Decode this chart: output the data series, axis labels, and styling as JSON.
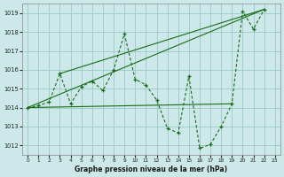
{
  "title": "Graphe pression niveau de la mer (hPa)",
  "background_color": "#cce8e8",
  "grid_color": "#9ac8c8",
  "line_color": "#1a6b1a",
  "xlim": [
    -0.5,
    23.5
  ],
  "ylim": [
    1011.5,
    1019.5
  ],
  "xticks": [
    0,
    1,
    2,
    3,
    4,
    5,
    6,
    7,
    8,
    9,
    10,
    11,
    12,
    13,
    14,
    15,
    16,
    17,
    18,
    19,
    20,
    21,
    22,
    23
  ],
  "yticks": [
    1012,
    1013,
    1014,
    1015,
    1016,
    1017,
    1018,
    1019
  ],
  "main_series": {
    "x": [
      0,
      1,
      2,
      3,
      4,
      5,
      6,
      7,
      8,
      9,
      10,
      11,
      12,
      13,
      14,
      15,
      16,
      17,
      18,
      19,
      20,
      21,
      22
    ],
    "y": [
      1014.0,
      1014.1,
      1014.3,
      1015.8,
      1014.2,
      1015.1,
      1015.4,
      1014.9,
      1016.0,
      1017.9,
      1015.5,
      1015.2,
      1014.4,
      1012.9,
      1012.65,
      1015.65,
      1011.85,
      1012.05,
      1013.0,
      1014.2,
      1019.1,
      1018.15,
      1019.2
    ]
  },
  "ref_line1": {
    "x": [
      0,
      19
    ],
    "y": [
      1014.0,
      1014.2
    ]
  },
  "ref_line2": {
    "x": [
      0,
      22
    ],
    "y": [
      1014.0,
      1019.2
    ]
  },
  "ref_line3": {
    "x": [
      3,
      22
    ],
    "y": [
      1015.8,
      1019.2
    ]
  }
}
